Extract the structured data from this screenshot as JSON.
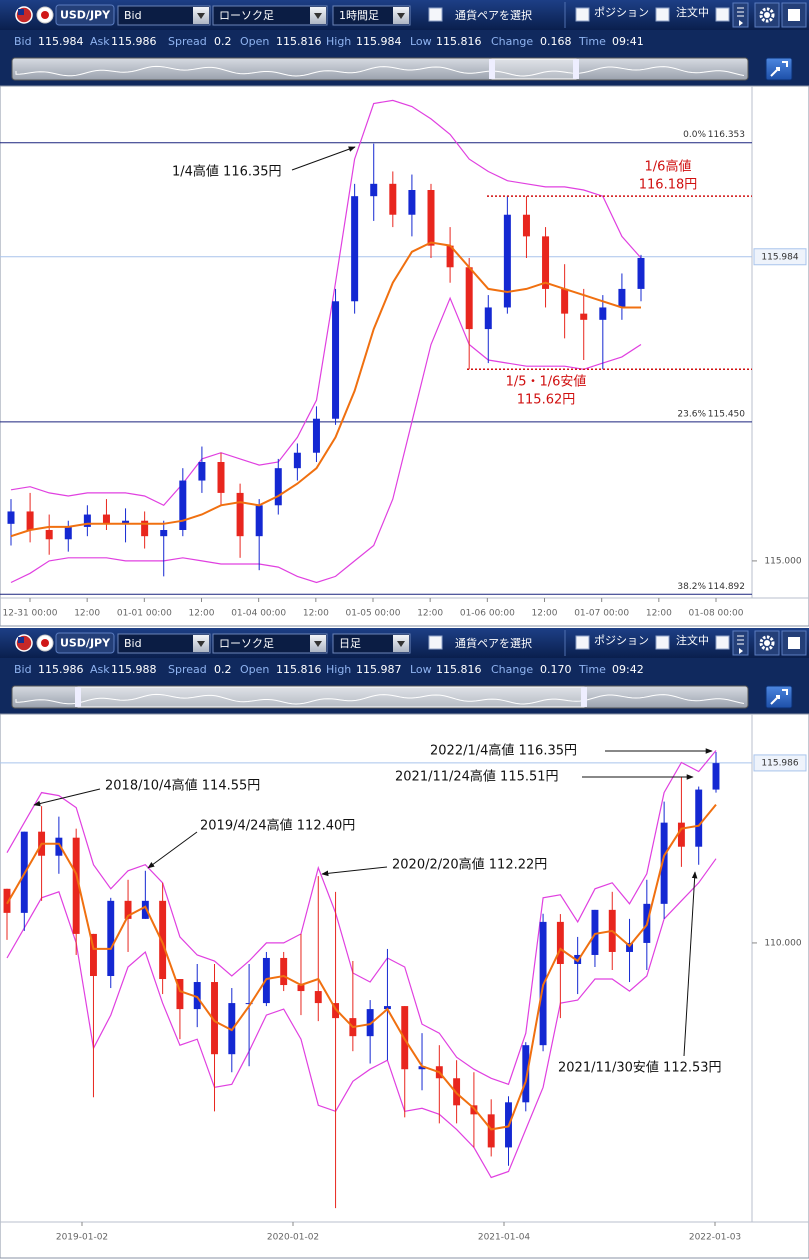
{
  "panels": [
    {
      "toolbar": {
        "pair": "USD/JPY",
        "price_side": "Bid",
        "chart_type": "ローソク足",
        "timeframe": "1時間足",
        "select_pair": "通貨ペアを選択",
        "position": "ポジション",
        "orders": "注文中"
      },
      "quote": {
        "labels": [
          "Bid",
          "Ask",
          "Spread",
          "Open",
          "High",
          "Low",
          "Change",
          "Time"
        ],
        "values": [
          "115.984",
          "115.986",
          "0.2",
          "115.816",
          "115.984",
          "115.816",
          "0.168",
          "09:41"
        ]
      }
    },
    {
      "toolbar": {
        "pair": "USD/JPY",
        "price_side": "Bid",
        "chart_type": "ローソク足",
        "timeframe": "日足",
        "select_pair": "通貨ペアを選択",
        "position": "ポジション",
        "orders": "注文中"
      },
      "quote": {
        "labels": [
          "Bid",
          "Ask",
          "Spread",
          "Open",
          "High",
          "Low",
          "Change",
          "Time"
        ],
        "values": [
          "115.986",
          "115.988",
          "0.2",
          "115.816",
          "115.987",
          "115.816",
          "0.170",
          "09:42"
        ]
      }
    }
  ],
  "chart_data": [
    {
      "type": "candlestick",
      "x_labels": [
        "12-31 00:00",
        "12:00",
        "01-01 00:00",
        "12:00",
        "01-04 00:00",
        "12:00",
        "01-05 00:00",
        "12:00",
        "01-06 00:00",
        "12:00",
        "01-07 00:00",
        "12:00",
        "01-08 00:00"
      ],
      "ylim": [
        114.88,
        116.53
      ],
      "yticks": [
        {
          "value": 115,
          "label": "115.000"
        }
      ],
      "last_price": 115.984,
      "last_color": "#a9c4ec",
      "up_color": "#1428d2",
      "down_color": "#e8261e",
      "candles": [
        [
          115.12,
          115.2,
          115.05,
          115.16
        ],
        [
          115.16,
          115.22,
          115.06,
          115.1
        ],
        [
          115.1,
          115.15,
          115.02,
          115.07
        ],
        [
          115.07,
          115.13,
          115.03,
          115.11
        ],
        [
          115.11,
          115.18,
          115.08,
          115.15
        ],
        [
          115.15,
          115.2,
          115.1,
          115.12
        ],
        [
          115.12,
          115.17,
          115.06,
          115.13
        ],
        [
          115.13,
          115.16,
          115.04,
          115.08
        ],
        [
          115.08,
          115.13,
          114.95,
          115.1
        ],
        [
          115.1,
          115.3,
          115.08,
          115.26
        ],
        [
          115.26,
          115.37,
          115.22,
          115.32
        ],
        [
          115.32,
          115.35,
          115.18,
          115.22
        ],
        [
          115.22,
          115.25,
          115.01,
          115.08
        ],
        [
          115.08,
          115.2,
          114.97,
          115.18
        ],
        [
          115.18,
          115.33,
          115.15,
          115.3
        ],
        [
          115.3,
          115.38,
          115.26,
          115.35
        ],
        [
          115.35,
          115.5,
          115.32,
          115.46
        ],
        [
          115.46,
          115.88,
          115.44,
          115.84
        ],
        [
          115.84,
          116.22,
          115.8,
          116.18
        ],
        [
          116.18,
          116.35,
          116.1,
          116.22
        ],
        [
          116.22,
          116.26,
          116.08,
          116.12
        ],
        [
          116.12,
          116.25,
          116.05,
          116.2
        ],
        [
          116.2,
          116.22,
          115.98,
          116.02
        ],
        [
          116.02,
          116.08,
          115.9,
          115.95
        ],
        [
          115.95,
          115.98,
          115.62,
          115.75
        ],
        [
          115.75,
          115.86,
          115.64,
          115.82
        ],
        [
          115.82,
          116.18,
          115.8,
          116.12
        ],
        [
          116.12,
          116.18,
          115.98,
          116.05
        ],
        [
          116.05,
          116.08,
          115.82,
          115.88
        ],
        [
          115.88,
          115.96,
          115.72,
          115.8
        ],
        [
          115.8,
          115.88,
          115.65,
          115.78
        ],
        [
          115.78,
          115.86,
          115.62,
          115.82
        ],
        [
          115.82,
          115.93,
          115.78,
          115.88
        ],
        [
          115.88,
          115.99,
          115.84,
          115.98
        ]
      ],
      "ma": {
        "color": "#f07010",
        "values": [
          115.08,
          115.1,
          115.11,
          115.11,
          115.12,
          115.12,
          115.12,
          115.12,
          115.12,
          115.13,
          115.15,
          115.18,
          115.19,
          115.18,
          115.21,
          115.25,
          115.3,
          115.4,
          115.55,
          115.75,
          115.9,
          116.0,
          116.03,
          116.02,
          115.95,
          115.88,
          115.87,
          115.88,
          115.9,
          115.88,
          115.86,
          115.84,
          115.82,
          115.82
        ]
      },
      "bands": {
        "color": "#e040e0",
        "upper": [
          115.23,
          115.24,
          115.22,
          115.21,
          115.22,
          115.22,
          115.22,
          115.21,
          115.18,
          115.25,
          115.33,
          115.35,
          115.33,
          115.31,
          115.32,
          115.4,
          115.52,
          115.9,
          116.3,
          116.48,
          116.49,
          116.47,
          116.43,
          116.38,
          116.3,
          116.26,
          116.23,
          116.22,
          116.21,
          116.21,
          116.2,
          116.18,
          116.05,
          115.98
        ],
        "lower": [
          114.93,
          114.96,
          115.0,
          115.01,
          115.01,
          115.01,
          115.0,
          115.0,
          115.0,
          115.01,
          115.0,
          114.99,
          114.99,
          114.99,
          114.98,
          114.95,
          114.93,
          114.95,
          115.0,
          115.05,
          115.2,
          115.45,
          115.7,
          115.85,
          115.7,
          115.65,
          115.64,
          115.63,
          115.63,
          115.63,
          115.62,
          115.64,
          115.66,
          115.7
        ]
      },
      "fib_color": "#1a237e",
      "fib_levels": [
        {
          "name": "0.0%",
          "value": 116.353
        },
        {
          "name": "23.6%",
          "value": 115.45,
          "label": "115.450"
        },
        {
          "name": "38.2%",
          "value": 114.892
        }
      ],
      "levels": {
        "color": "#d01010",
        "values": [
          116.18,
          115.62
        ]
      },
      "annotations": [
        {
          "text": "1/4高値 116.35円",
          "color": "#111111"
        },
        {
          "text": "1/6高値",
          "color": "#d01010"
        },
        {
          "text": "116.18円",
          "color": "#d01010"
        },
        {
          "text": "1/5・1/6安値",
          "color": "#d01010"
        },
        {
          "text": "115.62円",
          "color": "#d01010"
        }
      ]
    },
    {
      "type": "candlestick",
      "x_labels": [
        "2019-01-02",
        "2020-01-02",
        "2021-01-04",
        "2022-01-03"
      ],
      "ylim": [
        100.72,
        117.48
      ],
      "yticks": [
        {
          "value": 110,
          "label": "110.000"
        }
      ],
      "last_price": 115.986,
      "last_color": "#a9c4ec",
      "up_color": "#1428d2",
      "down_color": "#e8261e",
      "candles": [
        [
          111.8,
          111.8,
          110.1,
          111.0
        ],
        [
          111.0,
          113.7,
          110.4,
          113.7
        ],
        [
          113.7,
          114.55,
          111.4,
          112.9
        ],
        [
          112.9,
          114.2,
          112.3,
          113.5
        ],
        [
          113.5,
          113.8,
          109.6,
          110.3
        ],
        [
          110.3,
          110.3,
          104.87,
          108.9
        ],
        [
          108.9,
          111.5,
          108.5,
          111.4
        ],
        [
          111.4,
          112.1,
          109.7,
          110.8
        ],
        [
          110.8,
          112.4,
          110.8,
          111.4
        ],
        [
          111.4,
          112.0,
          108.3,
          108.8
        ],
        [
          108.8,
          108.8,
          106.8,
          107.8
        ],
        [
          107.8,
          109.3,
          107.2,
          108.7
        ],
        [
          108.7,
          109.3,
          104.4,
          106.3
        ],
        [
          106.3,
          108.5,
          105.7,
          108.0
        ],
        [
          108.0,
          109.3,
          105.9,
          108.0
        ],
        [
          108.0,
          109.7,
          107.9,
          109.5
        ],
        [
          109.5,
          109.7,
          108.4,
          108.6
        ],
        [
          108.6,
          110.3,
          107.6,
          108.4
        ],
        [
          108.4,
          112.22,
          107.4,
          108.0
        ],
        [
          108.0,
          111.7,
          101.18,
          107.5
        ],
        [
          107.5,
          109.4,
          106.4,
          106.9
        ],
        [
          106.9,
          108.1,
          105.99,
          107.8
        ],
        [
          107.8,
          109.8,
          106.1,
          107.9
        ],
        [
          107.9,
          107.9,
          104.2,
          105.8
        ],
        [
          105.8,
          107.0,
          105.1,
          105.9
        ],
        [
          105.9,
          106.6,
          104.0,
          105.5
        ],
        [
          105.5,
          106.1,
          104.0,
          104.6
        ],
        [
          104.6,
          105.7,
          103.2,
          104.3
        ],
        [
          104.3,
          104.8,
          102.9,
          103.2
        ],
        [
          103.2,
          104.9,
          102.59,
          104.7
        ],
        [
          104.7,
          106.7,
          104.4,
          106.6
        ],
        [
          106.6,
          110.97,
          106.4,
          110.7
        ],
        [
          110.7,
          110.96,
          107.5,
          109.3
        ],
        [
          109.3,
          110.2,
          108.3,
          109.6
        ],
        [
          109.6,
          111.1,
          109.2,
          111.1
        ],
        [
          111.1,
          111.7,
          109.1,
          109.7
        ],
        [
          109.7,
          110.8,
          108.7,
          110.0
        ],
        [
          110.0,
          112.1,
          109.1,
          111.3
        ],
        [
          111.3,
          114.7,
          110.8,
          114.0
        ],
        [
          114.0,
          115.51,
          112.53,
          113.2
        ],
        [
          113.2,
          115.2,
          112.6,
          115.1
        ],
        [
          115.1,
          116.35,
          115.0,
          115.98
        ]
      ],
      "ma": {
        "color": "#f07010",
        "values": [
          111.3,
          112.3,
          113.3,
          113.3,
          112.3,
          109.8,
          109.8,
          110.9,
          111.2,
          110.0,
          108.4,
          108.2,
          107.4,
          107.1,
          107.9,
          108.8,
          108.9,
          108.6,
          108.8,
          107.8,
          107.2,
          107.3,
          107.8,
          106.8,
          105.9,
          105.7,
          105.0,
          104.5,
          103.8,
          103.9,
          105.4,
          108.6,
          109.8,
          109.4,
          110.3,
          110.4,
          109.9,
          110.6,
          112.9,
          113.8,
          113.9,
          114.6
        ]
      },
      "bands": {
        "color": "#e040e0",
        "upper": [
          113.0,
          114.0,
          115.0,
          114.9,
          114.5,
          112.6,
          111.8,
          112.4,
          112.6,
          112.0,
          110.2,
          109.6,
          109.4,
          108.9,
          109.4,
          110.0,
          110.0,
          110.3,
          112.5,
          111.0,
          109.0,
          108.7,
          109.5,
          109.2,
          107.3,
          107.0,
          106.2,
          105.8,
          105.5,
          105.3,
          107.0,
          111.5,
          111.6,
          110.7,
          111.8,
          112.0,
          111.3,
          112.3,
          115.0,
          116.0,
          115.7,
          116.4
        ],
        "lower": [
          109.5,
          110.5,
          111.5,
          111.7,
          110.0,
          106.5,
          107.6,
          109.2,
          109.7,
          108.0,
          106.6,
          106.8,
          105.2,
          105.3,
          106.4,
          107.6,
          107.8,
          106.8,
          104.6,
          104.4,
          105.4,
          105.8,
          106.1,
          104.4,
          104.5,
          104.3,
          103.8,
          103.2,
          102.2,
          102.4,
          103.8,
          105.2,
          108.0,
          108.1,
          108.8,
          108.8,
          108.4,
          108.9,
          110.8,
          111.4,
          112.0,
          112.8
        ]
      },
      "annotations": [
        {
          "text": "2022/1/4高値 116.35円",
          "color": "#111111"
        },
        {
          "text": "2021/11/24高値 115.51円",
          "color": "#111111"
        },
        {
          "text": "2018/10/4高値 114.55円",
          "color": "#111111"
        },
        {
          "text": "2019/4/24高値 112.40円",
          "color": "#111111"
        },
        {
          "text": "2020/2/20高値 112.22円",
          "color": "#111111"
        },
        {
          "text": "2021/11/30安値 112.53円",
          "color": "#111111"
        }
      ]
    }
  ]
}
